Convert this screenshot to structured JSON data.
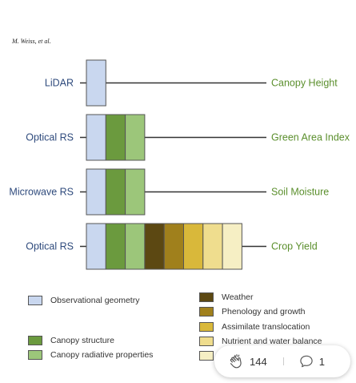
{
  "author": "M. Weiss, et al.",
  "rows": [
    {
      "left": "LiDAR",
      "right": "Canopy Height",
      "blocks": [
        "obs"
      ]
    },
    {
      "left": "Optical RS",
      "right": "Green Area Index",
      "blocks": [
        "obs",
        "structure",
        "radiative"
      ]
    },
    {
      "left": "Microwave RS",
      "right": "Soil Moisture",
      "blocks": [
        "obs",
        "structure",
        "radiative"
      ]
    },
    {
      "left": "Optical RS",
      "right": "Crop Yield",
      "blocks": [
        "obs",
        "structure",
        "radiative",
        "weather",
        "phenology",
        "assimilate",
        "nutrient",
        "management"
      ]
    }
  ],
  "colors": {
    "obs": "#c9d7ef",
    "structure": "#6b9a3e",
    "radiative": "#9cc67a",
    "weather": "#5c4812",
    "phenology": "#a0801c",
    "assimilate": "#d9b83a",
    "nutrient": "#efdd8e",
    "management": "#f6efc4",
    "left_text": "#2e4a7c",
    "right_text": "#5b8f2d"
  },
  "legend": [
    {
      "key": "obs",
      "label": "Observational geometry"
    },
    {
      "key": "structure",
      "label": "Canopy structure"
    },
    {
      "key": "radiative",
      "label": "Canopy radiative properties"
    },
    {
      "key": "weather",
      "label": "Weather"
    },
    {
      "key": "phenology",
      "label": "Phenology and growth"
    },
    {
      "key": "assimilate",
      "label": "Assimilate translocation"
    },
    {
      "key": "nutrient",
      "label": "Nutrient and water balance"
    },
    {
      "key": "management",
      "label": ""
    }
  ],
  "social": {
    "icons": [
      "clap-icon",
      "comment-icon"
    ],
    "claps": "144",
    "comments": "1"
  }
}
